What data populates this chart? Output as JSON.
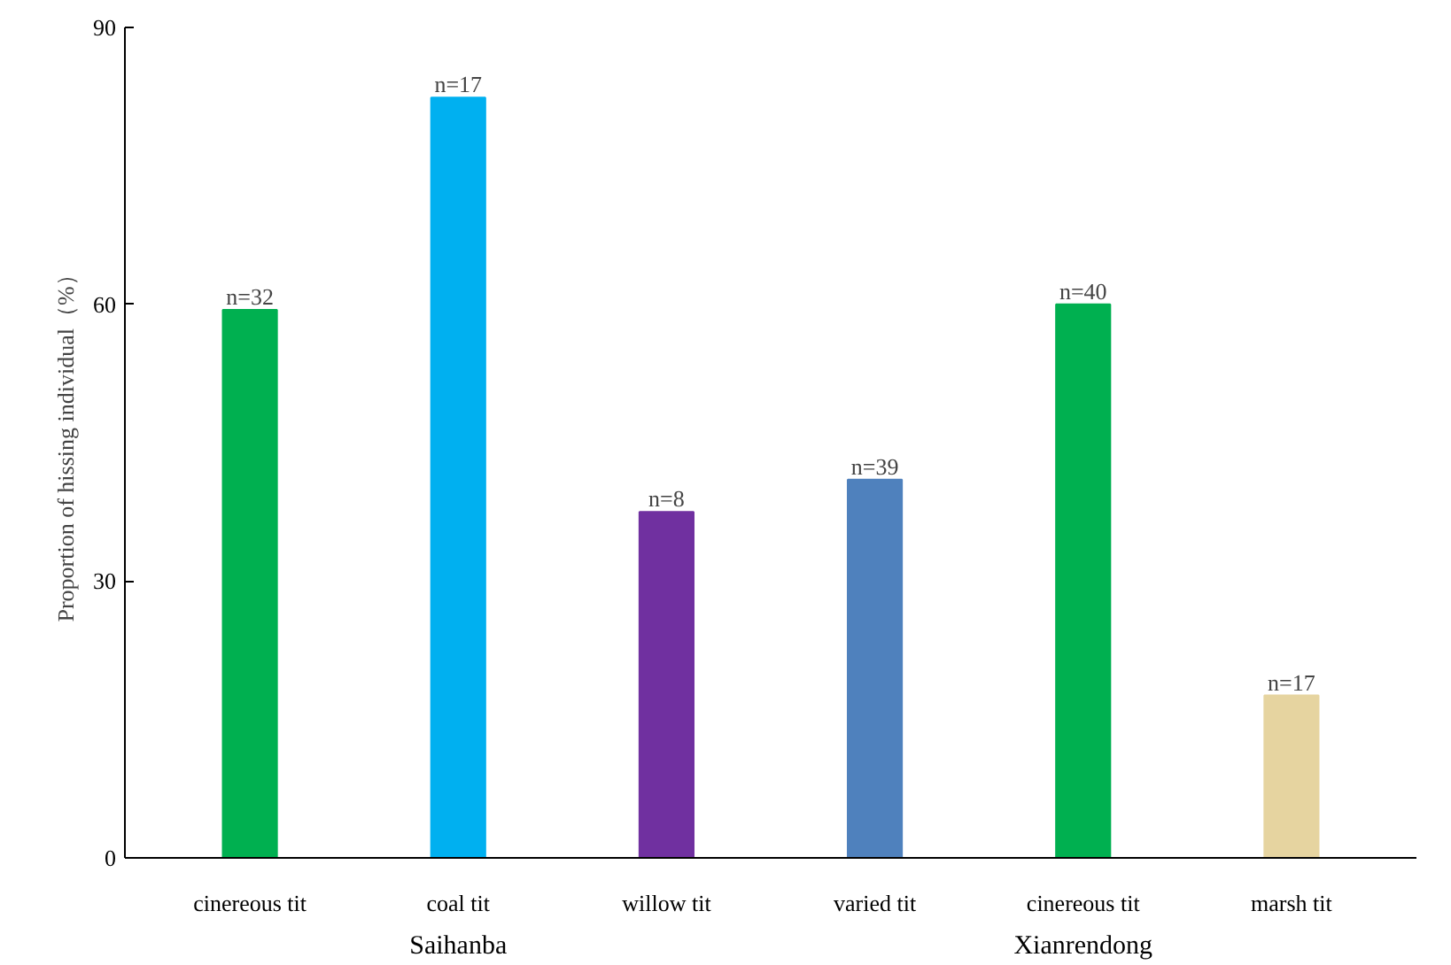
{
  "chart_data": {
    "type": "bar",
    "ylabel": "Proportion of hissing individual（%）",
    "categories": [
      "cinereous tit",
      "coal tit",
      "willow tit",
      "varied tit",
      "cinereous tit",
      "marsh tit"
    ],
    "values": [
      59.4,
      82.4,
      37.5,
      41.0,
      60.0,
      17.6
    ],
    "colors": [
      "#00b050",
      "#00b0f0",
      "#7030a0",
      "#4f81bd",
      "#00b050",
      "#e6d4a0"
    ],
    "annotations": [
      "n=32",
      "n=17",
      "n=8",
      "n=39",
      "n=40",
      "n=17",
      "Saihanba",
      "Xianrendong"
    ],
    "ylim": [
      0,
      90
    ],
    "yticks": [
      0,
      30,
      60,
      90
    ],
    "grid": false
  }
}
